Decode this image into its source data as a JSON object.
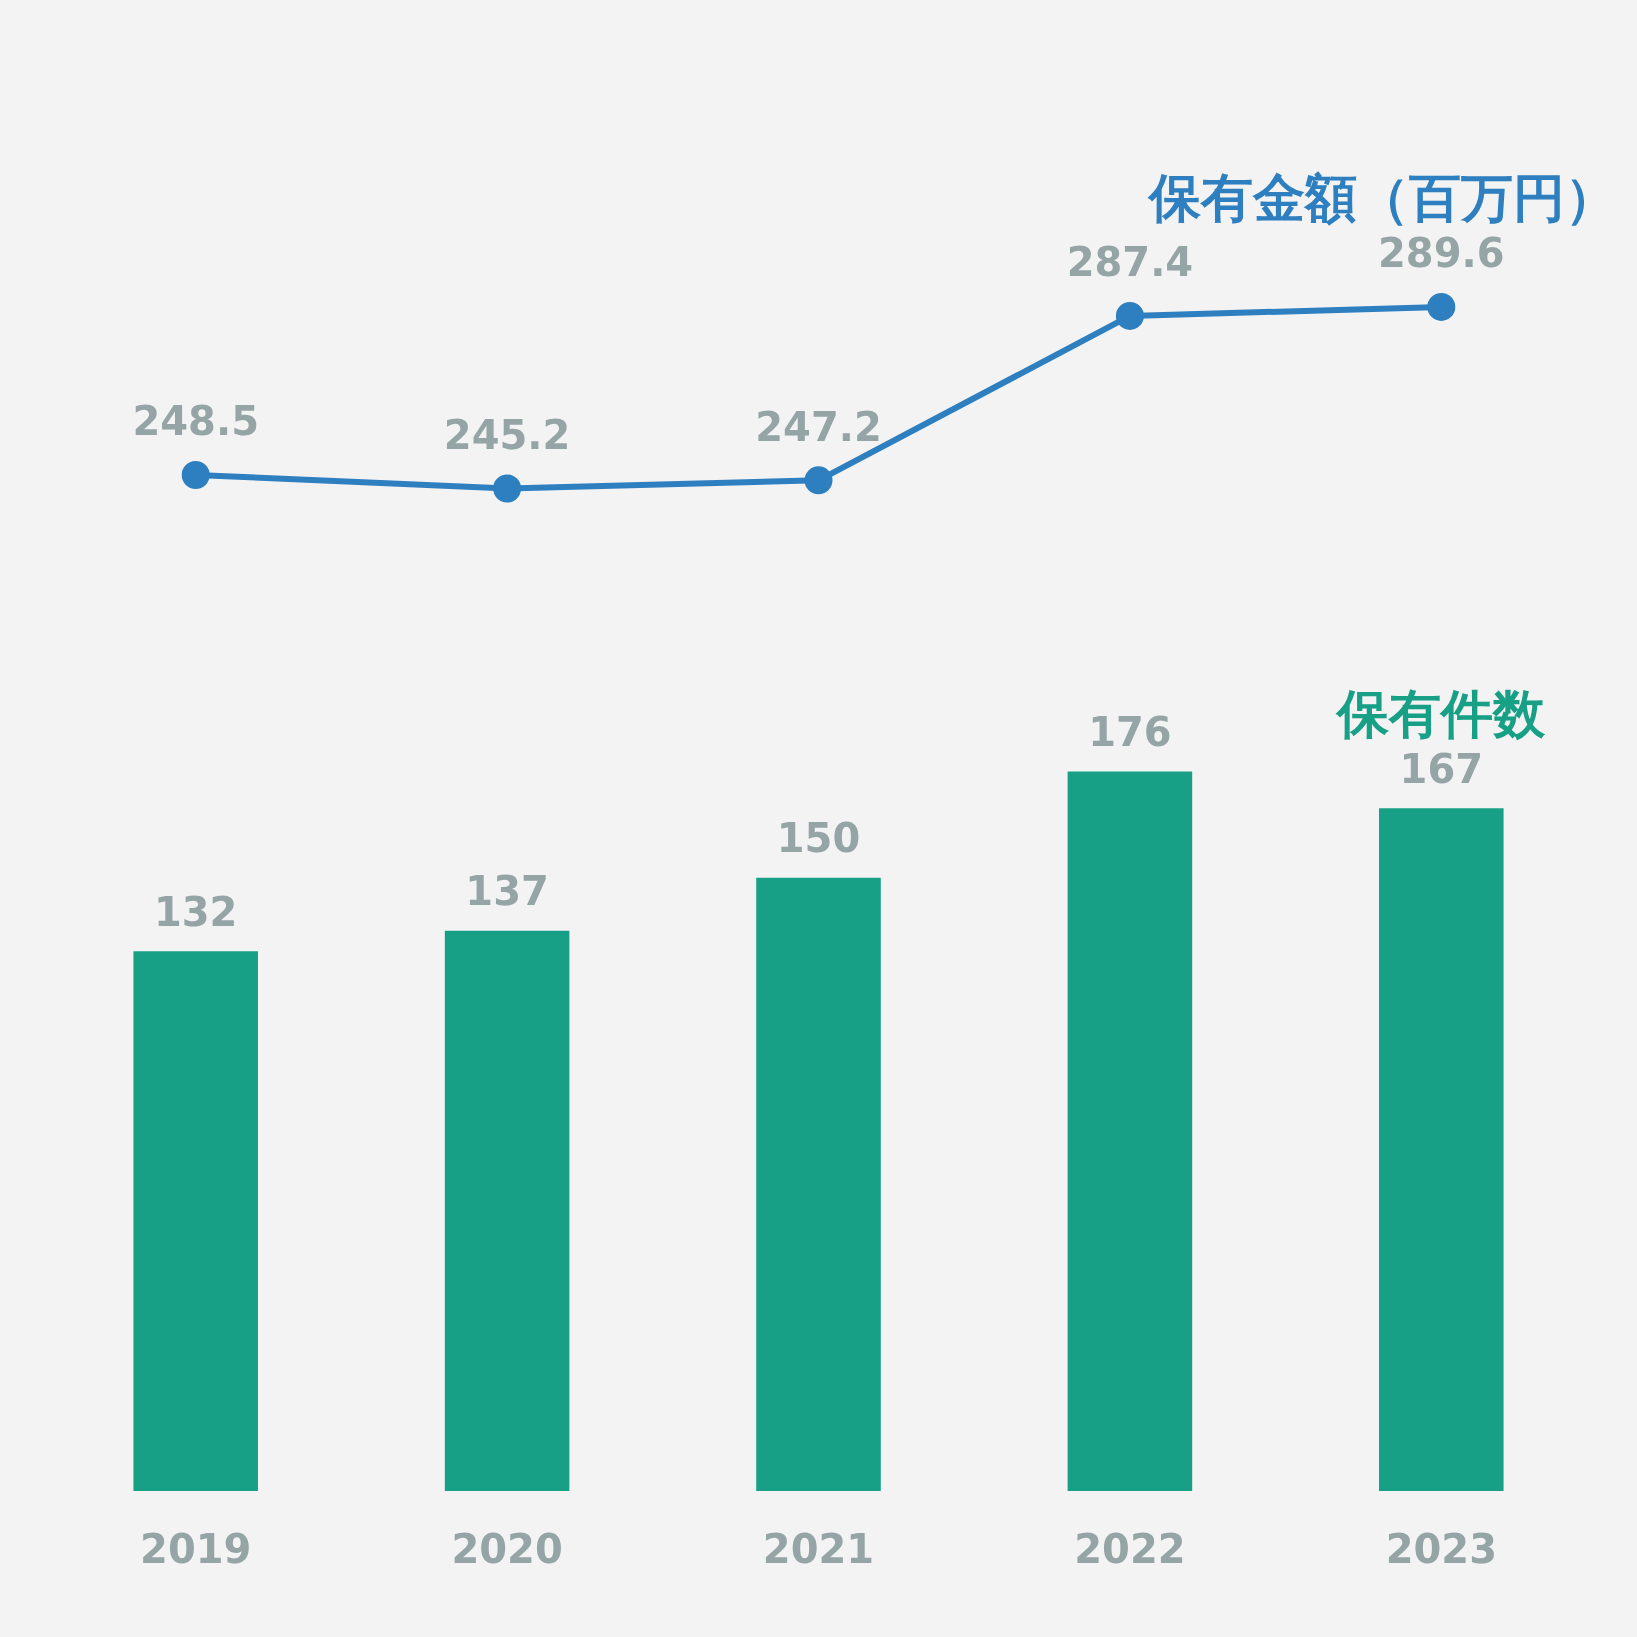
{
  "chart_data": {
    "type": "bar",
    "categories": [
      "2019",
      "2020",
      "2021",
      "2022",
      "2023"
    ],
    "series": [
      {
        "name": "保有件数",
        "color": "#17a086",
        "values": [
          132,
          137,
          150,
          176,
          167
        ]
      },
      {
        "name": "保有金額（百万円）",
        "type": "line",
        "color": "#2e7fc0",
        "values": [
          248.5,
          245.2,
          247.2,
          287.4,
          289.6
        ]
      }
    ],
    "tick_labels": "x",
    "grid": false,
    "legend": false,
    "data_labels": true,
    "marker": "circle",
    "line_style": "solid"
  }
}
